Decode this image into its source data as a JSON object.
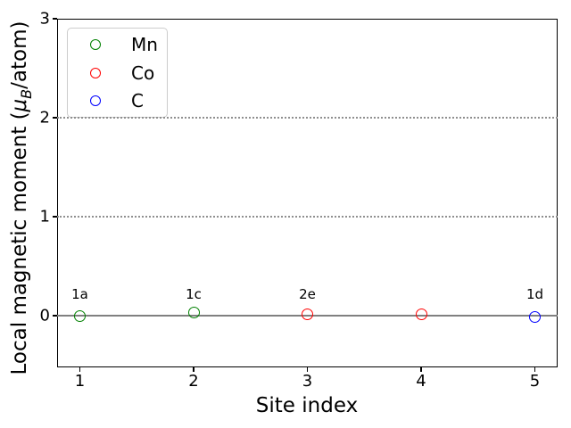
{
  "figure": {
    "background": "#ffffff",
    "spine_color": "#000000",
    "grid_color": "#8f8f8f",
    "zero_line_color": "#808080"
  },
  "chart_data": {
    "type": "scatter",
    "title": "",
    "xlabel": "Site index",
    "ylabel": "Local magnetic moment (μB/atom)",
    "ylabel_parts": {
      "pre": "Local magnetic moment (",
      "mu": "μ",
      "sub": "B",
      "post": "/atom)"
    },
    "xlim": [
      0.8,
      5.2
    ],
    "ylim": [
      -0.52,
      3.0
    ],
    "xticks": [
      1,
      2,
      3,
      4,
      5
    ],
    "yticks": [
      0,
      1,
      2,
      3
    ],
    "gridlines_y": [
      1,
      2
    ],
    "grid_style": "dotted",
    "zero_line_y": 0,
    "marker_style": "open-circle",
    "legend_position": "upper left",
    "series": [
      {
        "name": "Mn",
        "color": "#008000",
        "points": [
          {
            "x": 1,
            "y": 0.0
          },
          {
            "x": 2,
            "y": 0.03
          }
        ]
      },
      {
        "name": "Co",
        "color": "#ff0000",
        "points": [
          {
            "x": 3,
            "y": 0.02
          },
          {
            "x": 4,
            "y": 0.02
          }
        ]
      },
      {
        "name": "C",
        "color": "#0000ff",
        "points": [
          {
            "x": 5,
            "y": -0.01
          }
        ]
      }
    ],
    "annotations": [
      {
        "text": "1a",
        "x": 1,
        "y": 0.15
      },
      {
        "text": "1c",
        "x": 2,
        "y": 0.15
      },
      {
        "text": "2e",
        "x": 3,
        "y": 0.15
      },
      {
        "text": "1d",
        "x": 5,
        "y": 0.15
      }
    ]
  }
}
